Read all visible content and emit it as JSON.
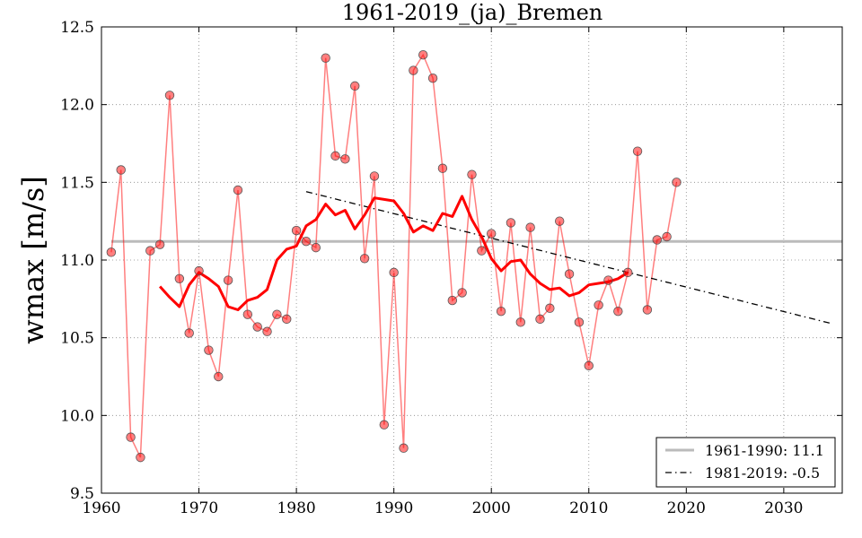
{
  "chart_data": {
    "type": "line",
    "title": "1961-2019_(ja)_Bremen",
    "xlabel": "",
    "ylabel": "wmax [m/s]",
    "xlim": [
      1960,
      2036
    ],
    "ylim": [
      9.5,
      12.5
    ],
    "xticks": [
      "1960",
      "1970",
      "1980",
      "1990",
      "2000",
      "2010",
      "2020",
      "2030"
    ],
    "yticks": [
      "9.5",
      "10.0",
      "10.5",
      "11.0",
      "11.5",
      "12.0",
      "12.5"
    ],
    "grid": true,
    "legend_position": "lower-right",
    "series": [
      {
        "style": "annual values (markers)",
        "color": "#ff0000",
        "x": [
          1961,
          1962,
          1963,
          1964,
          1965,
          1966,
          1967,
          1968,
          1969,
          1970,
          1971,
          1972,
          1973,
          1974,
          1975,
          1976,
          1977,
          1978,
          1979,
          1980,
          1981,
          1982,
          1983,
          1984,
          1985,
          1986,
          1987,
          1988,
          1989,
          1990,
          1991,
          1992,
          1993,
          1994,
          1995,
          1996,
          1997,
          1998,
          1999,
          2000,
          2001,
          2002,
          2003,
          2004,
          2005,
          2006,
          2007,
          2008,
          2009,
          2010,
          2011,
          2012,
          2013,
          2014,
          2015,
          2016,
          2017,
          2018,
          2019
        ],
        "values": [
          11.05,
          11.58,
          9.86,
          9.73,
          11.06,
          11.1,
          12.06,
          10.88,
          10.53,
          10.93,
          10.42,
          10.25,
          10.87,
          11.45,
          10.65,
          10.57,
          10.54,
          10.65,
          10.62,
          11.19,
          11.12,
          11.08,
          12.3,
          11.67,
          11.65,
          12.12,
          11.01,
          11.54,
          9.94,
          10.92,
          9.79,
          12.22,
          12.32,
          12.17,
          11.59,
          10.74,
          10.79,
          11.55,
          11.06,
          11.17,
          10.67,
          11.24,
          10.6,
          11.21,
          10.62,
          10.69,
          11.25,
          10.91,
          10.6,
          10.32,
          10.71,
          10.87,
          10.67,
          10.92,
          11.7,
          10.68,
          11.13,
          11.15,
          11.5
        ]
      },
      {
        "style": "moving average",
        "color": "#ff0000",
        "x": [
          1966,
          1967,
          1968,
          1969,
          1970,
          1971,
          1972,
          1973,
          1974,
          1975,
          1976,
          1977,
          1978,
          1979,
          1980,
          1981,
          1982,
          1983,
          1984,
          1985,
          1986,
          1987,
          1988,
          1989,
          1990,
          1991,
          1992,
          1993,
          1994,
          1995,
          1996,
          1997,
          1998,
          1999,
          2000,
          2001,
          2002,
          2003,
          2004,
          2005,
          2006,
          2007,
          2008,
          2009,
          2010,
          2011,
          2012,
          2013,
          2014
        ],
        "values": [
          10.83,
          10.76,
          10.7,
          10.84,
          10.92,
          10.88,
          10.83,
          10.7,
          10.68,
          10.74,
          10.76,
          10.81,
          11.0,
          11.07,
          11.09,
          11.22,
          11.26,
          11.36,
          11.29,
          11.32,
          11.2,
          11.29,
          11.4,
          11.39,
          11.38,
          11.3,
          11.18,
          11.22,
          11.19,
          11.3,
          11.28,
          11.41,
          11.26,
          11.15,
          11.01,
          10.93,
          10.99,
          11.0,
          10.91,
          10.85,
          10.81,
          10.82,
          10.77,
          10.79,
          10.84,
          10.85,
          10.86,
          10.88,
          10.92
        ]
      },
      {
        "name": "1961-1990: 11.1",
        "style": "mean line",
        "color": "#bbbbbb",
        "x": [
          1961,
          2036
        ],
        "values": [
          11.12,
          11.12
        ]
      },
      {
        "name": "1981-2019: -0.5",
        "style": "trend (dash-dot)",
        "color": "#000000",
        "x": [
          1981,
          2035
        ],
        "values": [
          11.44,
          10.59
        ]
      }
    ]
  }
}
